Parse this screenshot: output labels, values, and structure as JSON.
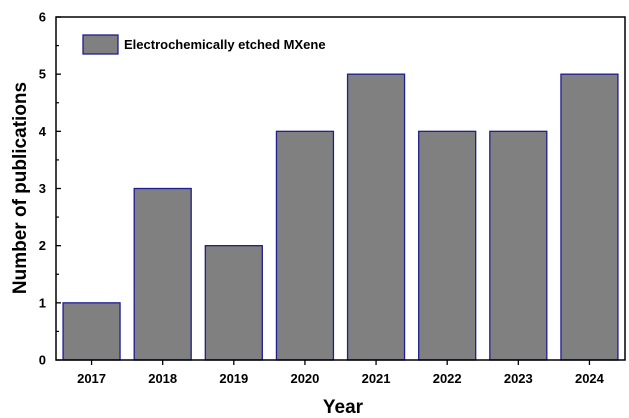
{
  "chart_data": {
    "type": "bar",
    "categories": [
      "2017",
      "2018",
      "2019",
      "2020",
      "2021",
      "2022",
      "2023",
      "2024"
    ],
    "series": [
      {
        "name": "Electrochemically etched MXene",
        "values": [
          1,
          3,
          2,
          4,
          5,
          4,
          4,
          5
        ]
      }
    ],
    "title": "",
    "xlabel": "Year",
    "ylabel": "Number of publications",
    "ylim": [
      0,
      6
    ],
    "yticks": [
      "0",
      "1",
      "2",
      "3",
      "4",
      "5",
      "6"
    ],
    "grid": false,
    "legend_position": "top-left",
    "colors": {
      "bar_fill": "#808080",
      "bar_edge": "#1f1f8f",
      "axis": "#000000"
    }
  }
}
